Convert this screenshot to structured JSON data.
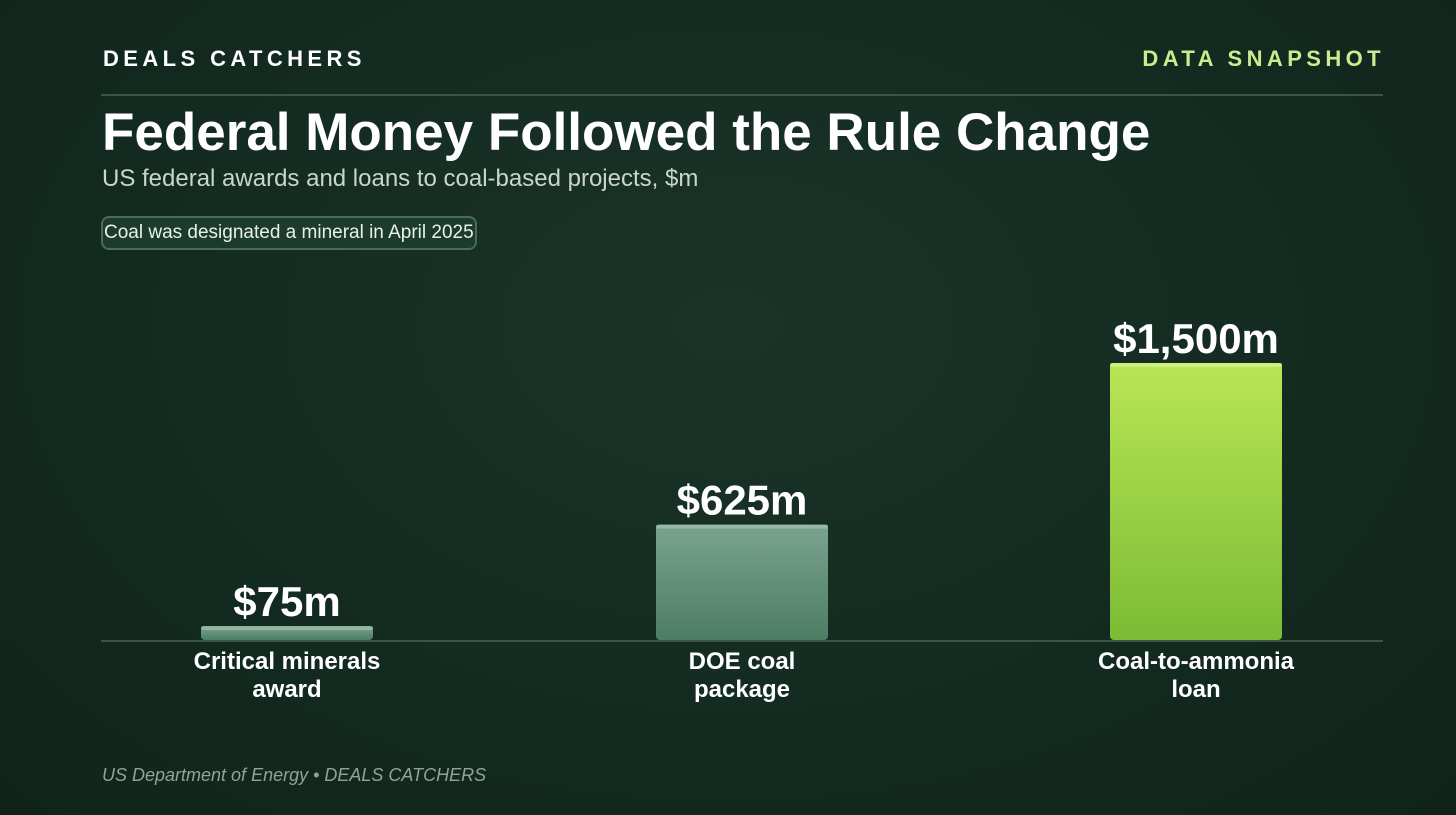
{
  "header": {
    "brand": "DEALS CATCHERS",
    "tag": "DATA SNAPSHOT"
  },
  "title": "Federal Money Followed the Rule Change",
  "subtitle": "US federal awards and loans to coal-based projects, $m",
  "annotation": "Coal was designated a mineral in April 2025",
  "footer": {
    "source": "US Department of Energy • DEALS CATCHERS"
  },
  "colors": {
    "accent": "#c9ec8f",
    "bar_muted_top": "#7aa38f",
    "bar_muted_bottom": "#4d7d64",
    "bar_highlight_top": "#b8e655",
    "bar_highlight_bottom": "#7cbb35"
  },
  "chart_data": {
    "type": "bar",
    "categories": [
      [
        "Critical minerals",
        "award"
      ],
      [
        "DOE coal",
        "package"
      ],
      [
        "Coal-to-ammonia",
        "loan"
      ]
    ],
    "values": [
      75,
      625,
      1500
    ],
    "value_labels": [
      "$75m",
      "$625m",
      "$1,500m"
    ],
    "highlight_index": 2,
    "ylim": [
      0,
      1500
    ],
    "grid": false,
    "legend": "none"
  }
}
